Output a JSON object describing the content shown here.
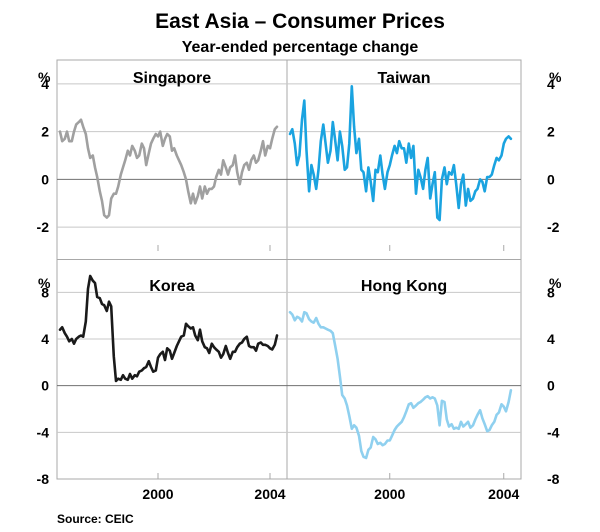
{
  "title": "East Asia – Consumer Prices",
  "subtitle": "Year-ended percentage change",
  "source": "Source: CEIC",
  "colors": {
    "Singapore": "#a0a0a0",
    "Taiwan": "#1aa3e0",
    "Korea": "#1a1a1a",
    "Hong Kong": "#8fd0ef",
    "grid": "#c8c8c8",
    "frame": "#a8a8a8",
    "zero": "#707070"
  },
  "chart_data": {
    "type": "line",
    "x_unit": "year",
    "x_range": [
      1996.5,
      2004.5
    ],
    "x_ticks": [
      2000,
      2004
    ],
    "x_tick_labels": [
      "2000",
      "2004",
      "2000",
      "2004"
    ],
    "y_unit_label": "%",
    "panels": [
      {
        "name": "Singapore",
        "label": "Singapore",
        "row": "top",
        "col": "left",
        "ylim": [
          -3,
          5
        ],
        "y_ticks": [
          -2,
          0,
          2,
          4
        ],
        "y_tick_labels": [
          "4",
          "2",
          "0",
          "-2"
        ],
        "series": {
          "x": [
            1996.5,
            1996.58,
            1996.67,
            1996.75,
            1996.83,
            1996.92,
            1997.0,
            1997.08,
            1997.17,
            1997.25,
            1997.33,
            1997.42,
            1997.5,
            1997.58,
            1997.67,
            1997.75,
            1997.83,
            1997.92,
            1998.0,
            1998.08,
            1998.17,
            1998.25,
            1998.33,
            1998.42,
            1998.5,
            1998.58,
            1998.67,
            1998.75,
            1998.83,
            1998.92,
            1999.0,
            1999.08,
            1999.17,
            1999.25,
            1999.33,
            1999.42,
            1999.5,
            1999.58,
            1999.67,
            1999.75,
            1999.83,
            1999.92,
            2000.0,
            2000.08,
            2000.17,
            2000.25,
            2000.33,
            2000.42,
            2000.5,
            2000.58,
            2000.67,
            2000.75,
            2000.83,
            2000.92,
            2001.0,
            2001.08,
            2001.17,
            2001.25,
            2001.33,
            2001.42,
            2001.5,
            2001.58,
            2001.67,
            2001.75,
            2001.83,
            2001.92,
            2002.0,
            2002.08,
            2002.17,
            2002.25,
            2002.33,
            2002.42,
            2002.5,
            2002.58,
            2002.67,
            2002.75,
            2002.83,
            2002.92,
            2003.0,
            2003.08,
            2003.17,
            2003.25,
            2003.33,
            2003.42,
            2003.5,
            2003.58,
            2003.67,
            2003.75,
            2003.83,
            2003.92,
            2004.0,
            2004.08,
            2004.17,
            2004.25
          ],
          "values": [
            2.0,
            1.6,
            1.7,
            2.0,
            1.6,
            1.6,
            2.0,
            2.3,
            2.4,
            2.5,
            2.2,
            1.9,
            1.3,
            0.9,
            1.0,
            0.5,
            0.1,
            -0.5,
            -0.9,
            -1.5,
            -1.6,
            -1.5,
            -0.8,
            -0.6,
            -0.6,
            -0.3,
            0.2,
            0.5,
            0.8,
            1.2,
            1.0,
            1.4,
            1.2,
            0.9,
            1.0,
            1.5,
            1.3,
            0.6,
            1.1,
            1.5,
            1.7,
            1.9,
            1.8,
            2.0,
            1.4,
            1.7,
            1.9,
            1.8,
            1.2,
            1.3,
            1.0,
            0.8,
            0.6,
            0.3,
            0.0,
            -0.5,
            -1.0,
            -0.6,
            -1.0,
            -0.7,
            -0.3,
            -0.8,
            -0.3,
            -0.6,
            -0.4,
            -0.4,
            -0.3,
            0.1,
            0.4,
            0.2,
            0.8,
            0.5,
            0.2,
            0.5,
            0.6,
            1.0,
            0.3,
            -0.2,
            0.3,
            0.6,
            0.7,
            0.4,
            0.8,
            1.0,
            0.7,
            0.8,
            1.2,
            1.6,
            1.0,
            1.4,
            1.3,
            1.7,
            2.1,
            2.2
          ]
        }
      },
      {
        "name": "Taiwan",
        "label": "Taiwan",
        "row": "top",
        "col": "right",
        "ylim": [
          -3,
          5
        ],
        "y_ticks": [
          -2,
          0,
          2,
          4
        ],
        "y_tick_labels": [
          "4",
          "2",
          "0",
          "-2"
        ],
        "series": {
          "x": [
            1996.5,
            1996.58,
            1996.67,
            1996.75,
            1996.83,
            1996.92,
            1997.0,
            1997.08,
            1997.17,
            1997.25,
            1997.33,
            1997.42,
            1997.5,
            1997.58,
            1997.67,
            1997.75,
            1997.83,
            1997.92,
            1998.0,
            1998.08,
            1998.17,
            1998.25,
            1998.33,
            1998.42,
            1998.5,
            1998.58,
            1998.67,
            1998.75,
            1998.83,
            1998.92,
            1999.0,
            1999.08,
            1999.17,
            1999.25,
            1999.33,
            1999.42,
            1999.5,
            1999.58,
            1999.67,
            1999.75,
            1999.83,
            1999.92,
            2000.0,
            2000.08,
            2000.17,
            2000.25,
            2000.33,
            2000.42,
            2000.5,
            2000.58,
            2000.67,
            2000.75,
            2000.83,
            2000.92,
            2001.0,
            2001.08,
            2001.17,
            2001.25,
            2001.33,
            2001.42,
            2001.5,
            2001.58,
            2001.67,
            2001.75,
            2001.83,
            2001.92,
            2002.0,
            2002.08,
            2002.17,
            2002.25,
            2002.33,
            2002.42,
            2002.5,
            2002.58,
            2002.67,
            2002.75,
            2002.83,
            2002.92,
            2003.0,
            2003.08,
            2003.17,
            2003.25,
            2003.33,
            2003.42,
            2003.5,
            2003.58,
            2003.67,
            2003.75,
            2003.83,
            2003.92,
            2004.0,
            2004.08,
            2004.17,
            2004.25
          ],
          "values": [
            1.9,
            2.1,
            1.5,
            0.6,
            1.0,
            2.5,
            3.3,
            1.2,
            -0.5,
            0.6,
            0.2,
            -0.4,
            0.4,
            1.6,
            2.3,
            1.5,
            0.7,
            1.2,
            2.4,
            1.7,
            0.8,
            2.0,
            1.4,
            0.4,
            0.5,
            1.5,
            3.9,
            2.2,
            1.1,
            1.7,
            0.4,
            0.3,
            -0.5,
            0.5,
            -0.1,
            -0.9,
            0.4,
            0.3,
            1.0,
            0.2,
            -0.4,
            0.3,
            0.6,
            1.0,
            1.4,
            1.1,
            1.6,
            1.3,
            1.3,
            0.7,
            1.5,
            0.9,
            1.4,
            -0.6,
            0.4,
            0.1,
            -0.4,
            0.4,
            0.9,
            -0.8,
            -0.2,
            0.3,
            -1.6,
            -1.7,
            0.0,
            0.5,
            -0.2,
            0.3,
            0.2,
            0.6,
            -0.2,
            -1.2,
            -0.2,
            0.2,
            -1.1,
            -0.4,
            -0.9,
            -0.8,
            -0.5,
            -0.4,
            0.0,
            -0.1,
            -0.5,
            0.1,
            0.1,
            0.2,
            0.6,
            0.9,
            0.8,
            1.0,
            1.5,
            1.7,
            1.8,
            1.7
          ]
        }
      },
      {
        "name": "Korea",
        "label": "Korea",
        "row": "bottom",
        "col": "left",
        "ylim": [
          -8,
          10
        ],
        "y_ticks": [
          -8,
          -4,
          0,
          4,
          8
        ],
        "y_tick_labels": [
          "8",
          "4",
          "0",
          "-4",
          "-8"
        ],
        "series": {
          "x": [
            1996.5,
            1996.58,
            1996.67,
            1996.75,
            1996.83,
            1996.92,
            1997.0,
            1997.08,
            1997.17,
            1997.25,
            1997.33,
            1997.42,
            1997.5,
            1997.58,
            1997.67,
            1997.75,
            1997.83,
            1997.92,
            1998.0,
            1998.08,
            1998.17,
            1998.25,
            1998.33,
            1998.42,
            1998.5,
            1998.58,
            1998.67,
            1998.75,
            1998.83,
            1998.92,
            1999.0,
            1999.08,
            1999.17,
            1999.25,
            1999.33,
            1999.42,
            1999.5,
            1999.58,
            1999.67,
            1999.75,
            1999.83,
            1999.92,
            2000.0,
            2000.08,
            2000.17,
            2000.25,
            2000.33,
            2000.42,
            2000.5,
            2000.58,
            2000.67,
            2000.75,
            2000.83,
            2000.92,
            2001.0,
            2001.08,
            2001.17,
            2001.25,
            2001.33,
            2001.42,
            2001.5,
            2001.58,
            2001.67,
            2001.75,
            2001.83,
            2001.92,
            2002.0,
            2002.08,
            2002.17,
            2002.25,
            2002.33,
            2002.42,
            2002.5,
            2002.58,
            2002.67,
            2002.75,
            2002.83,
            2002.92,
            2003.0,
            2003.08,
            2003.17,
            2003.25,
            2003.33,
            2003.42,
            2003.5,
            2003.58,
            2003.67,
            2003.75,
            2003.83,
            2003.92,
            2004.0,
            2004.08,
            2004.17,
            2004.25
          ],
          "values": [
            4.8,
            5.0,
            4.5,
            4.2,
            3.8,
            4.0,
            3.6,
            4.0,
            4.2,
            4.3,
            4.2,
            5.5,
            8.3,
            9.4,
            9.0,
            8.8,
            7.6,
            7.5,
            7.0,
            6.9,
            6.4,
            7.2,
            6.8,
            2.5,
            0.4,
            0.6,
            0.5,
            0.9,
            0.6,
            0.5,
            1.0,
            0.6,
            0.9,
            0.8,
            1.2,
            1.3,
            1.5,
            1.6,
            2.1,
            1.6,
            1.2,
            1.3,
            2.4,
            2.7,
            2.9,
            2.2,
            3.2,
            3.0,
            2.3,
            2.8,
            3.4,
            3.8,
            4.2,
            4.3,
            5.3,
            5.1,
            4.9,
            5.0,
            4.3,
            3.9,
            4.8,
            3.8,
            3.3,
            3.2,
            2.8,
            3.6,
            3.3,
            3.1,
            2.9,
            2.4,
            2.7,
            3.4,
            2.8,
            2.3,
            2.9,
            2.9,
            3.3,
            3.6,
            3.7,
            4.0,
            4.2,
            3.4,
            3.3,
            3.3,
            3.0,
            3.6,
            3.7,
            3.5,
            3.5,
            3.4,
            3.2,
            3.1,
            3.5,
            4.3
          ]
        }
      },
      {
        "name": "Hong Kong",
        "label": "Hong Kong",
        "row": "bottom",
        "col": "right",
        "ylim": [
          -8,
          10
        ],
        "y_ticks": [
          -8,
          -4,
          0,
          4,
          8
        ],
        "y_tick_labels": [
          "8",
          "4",
          "0",
          "-4",
          "-8"
        ],
        "series": {
          "x": [
            1996.5,
            1996.58,
            1996.67,
            1996.75,
            1996.83,
            1996.92,
            1997.0,
            1997.08,
            1997.17,
            1997.25,
            1997.33,
            1997.42,
            1997.5,
            1997.58,
            1997.67,
            1997.75,
            1997.83,
            1997.92,
            1998.0,
            1998.08,
            1998.17,
            1998.25,
            1998.33,
            1998.42,
            1998.5,
            1998.58,
            1998.67,
            1998.75,
            1998.83,
            1998.92,
            1999.0,
            1999.08,
            1999.17,
            1999.25,
            1999.33,
            1999.42,
            1999.5,
            1999.58,
            1999.67,
            1999.75,
            1999.83,
            1999.92,
            2000.0,
            2000.08,
            2000.17,
            2000.25,
            2000.33,
            2000.42,
            2000.5,
            2000.58,
            2000.67,
            2000.75,
            2000.83,
            2000.92,
            2001.0,
            2001.08,
            2001.17,
            2001.25,
            2001.33,
            2001.42,
            2001.5,
            2001.58,
            2001.67,
            2001.75,
            2001.83,
            2001.92,
            2002.0,
            2002.08,
            2002.17,
            2002.25,
            2002.33,
            2002.42,
            2002.5,
            2002.58,
            2002.67,
            2002.75,
            2002.83,
            2002.92,
            2003.0,
            2003.08,
            2003.17,
            2003.25,
            2003.33,
            2003.42,
            2003.5,
            2003.58,
            2003.67,
            2003.75,
            2003.83,
            2003.92,
            2004.0,
            2004.08,
            2004.17,
            2004.25
          ],
          "values": [
            6.3,
            6.1,
            5.6,
            5.9,
            5.8,
            5.5,
            6.3,
            6.2,
            5.7,
            5.5,
            5.4,
            5.8,
            5.3,
            5.0,
            5.0,
            4.9,
            4.8,
            4.7,
            4.5,
            3.5,
            2.3,
            0.8,
            -0.8,
            -1.1,
            -1.7,
            -2.6,
            -3.7,
            -3.4,
            -3.6,
            -4.3,
            -5.6,
            -6.1,
            -6.2,
            -5.5,
            -5.3,
            -4.4,
            -4.6,
            -5.0,
            -4.9,
            -5.1,
            -5.0,
            -4.7,
            -4.7,
            -4.3,
            -3.8,
            -3.5,
            -3.3,
            -3.1,
            -2.7,
            -2.2,
            -1.6,
            -1.5,
            -1.9,
            -1.7,
            -1.5,
            -1.4,
            -1.2,
            -1.0,
            -0.9,
            -1.1,
            -1.0,
            -1.1,
            -1.7,
            -3.4,
            -1.3,
            -1.4,
            -2.9,
            -3.5,
            -3.3,
            -3.7,
            -3.6,
            -3.7,
            -3.1,
            -3.5,
            -3.3,
            -3.1,
            -3.6,
            -3.4,
            -2.9,
            -2.5,
            -2.1,
            -2.8,
            -3.3,
            -3.9,
            -3.8,
            -3.4,
            -3.1,
            -2.5,
            -2.3,
            -1.6,
            -1.8,
            -2.2,
            -1.4,
            -0.4
          ]
        }
      }
    ]
  }
}
